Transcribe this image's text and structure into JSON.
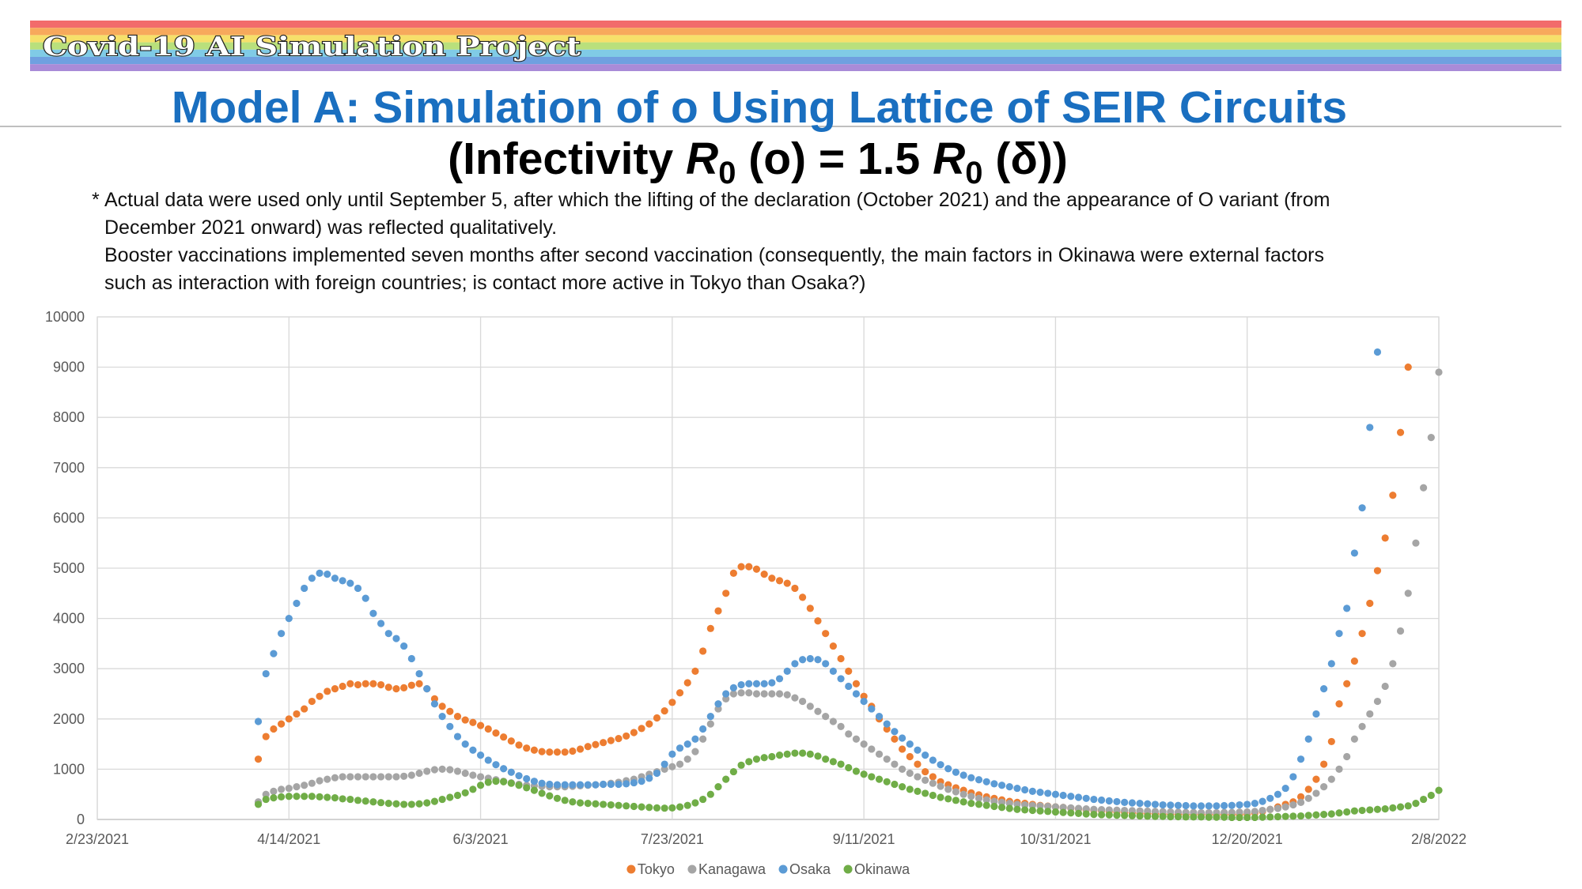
{
  "header": {
    "banner": "Covid-19 AI Simulation Project",
    "title": "Model A: Simulation of o Using Lattice of SEIR Circuits",
    "subtitle": [
      "(Infectivity ",
      "R",
      "0",
      " (o) = 1.5 ",
      "R",
      "0",
      " (δ))"
    ]
  },
  "notes": [
    {
      "marker": "*",
      "lines": [
        "Actual data were used only until September 5, after which the lifting of the declaration (October 2021) and the appearance of O variant (from",
        "December 2021 onward) was reflected qualitatively."
      ]
    },
    {
      "lines": [
        "Booster vaccinations implemented seven months after second vaccination (consequently, the main factors in Okinawa were external factors",
        "such as interaction with foreign countries; is contact more active in Tokyo than Osaka?)"
      ]
    }
  ],
  "chart_data": {
    "type": "scatter",
    "x": [
      "4/6/2021",
      "4/8/2021",
      "4/10/2021",
      "4/12/2021",
      "4/14/2021",
      "4/16/2021",
      "4/18/2021",
      "4/20/2021",
      "4/22/2021",
      "4/24/2021",
      "4/26/2021",
      "4/28/2021",
      "4/30/2021",
      "5/2/2021",
      "5/4/2021",
      "5/6/2021",
      "5/8/2021",
      "5/10/2021",
      "5/12/2021",
      "5/14/2021",
      "5/16/2021",
      "5/18/2021",
      "5/20/2021",
      "5/22/2021",
      "5/24/2021",
      "5/26/2021",
      "5/28/2021",
      "5/30/2021",
      "6/1/2021",
      "6/3/2021",
      "6/5/2021",
      "6/7/2021",
      "6/9/2021",
      "6/11/2021",
      "6/13/2021",
      "6/15/2021",
      "6/17/2021",
      "6/19/2021",
      "6/21/2021",
      "6/23/2021",
      "6/25/2021",
      "6/27/2021",
      "6/29/2021",
      "7/1/2021",
      "7/3/2021",
      "7/5/2021",
      "7/7/2021",
      "7/9/2021",
      "7/11/2021",
      "7/13/2021",
      "7/15/2021",
      "7/17/2021",
      "7/19/2021",
      "7/21/2021",
      "7/23/2021",
      "7/25/2021",
      "7/27/2021",
      "7/29/2021",
      "7/31/2021",
      "8/2/2021",
      "8/4/2021",
      "8/6/2021",
      "8/8/2021",
      "8/10/2021",
      "8/12/2021",
      "8/14/2021",
      "8/16/2021",
      "8/18/2021",
      "8/20/2021",
      "8/22/2021",
      "8/24/2021",
      "8/26/2021",
      "8/28/2021",
      "8/30/2021",
      "9/1/2021",
      "9/3/2021",
      "9/5/2021",
      "9/7/2021",
      "9/9/2021",
      "9/11/2021",
      "9/13/2021",
      "9/15/2021",
      "9/17/2021",
      "9/19/2021",
      "9/21/2021",
      "9/23/2021",
      "9/25/2021",
      "9/27/2021",
      "9/29/2021",
      "10/1/2021",
      "10/3/2021",
      "10/5/2021",
      "10/7/2021",
      "10/9/2021",
      "10/11/2021",
      "10/13/2021",
      "10/15/2021",
      "10/17/2021",
      "10/19/2021",
      "10/21/2021",
      "10/23/2021",
      "10/25/2021",
      "10/27/2021",
      "10/29/2021",
      "10/31/2021",
      "11/2/2021",
      "11/4/2021",
      "11/6/2021",
      "11/8/2021",
      "11/10/2021",
      "11/12/2021",
      "11/14/2021",
      "11/16/2021",
      "11/18/2021",
      "11/20/2021",
      "11/22/2021",
      "11/24/2021",
      "11/26/2021",
      "11/28/2021",
      "11/30/2021",
      "12/2/2021",
      "12/4/2021",
      "12/6/2021",
      "12/8/2021",
      "12/10/2021",
      "12/12/2021",
      "12/14/2021",
      "12/16/2021",
      "12/18/2021",
      "12/20/2021",
      "12/22/2021",
      "12/24/2021",
      "12/26/2021",
      "12/28/2021",
      "12/30/2021",
      "1/1/2022",
      "1/3/2022",
      "1/5/2022",
      "1/7/2022",
      "1/9/2022",
      "1/11/2022",
      "1/13/2022",
      "1/15/2022",
      "1/17/2022",
      "1/19/2022",
      "1/21/2022",
      "1/23/2022",
      "1/25/2022",
      "1/27/2022",
      "1/29/2022",
      "1/31/2022",
      "2/2/2022",
      "2/4/2022",
      "2/6/2022",
      "2/8/2022"
    ],
    "series": [
      {
        "name": "Tokyo",
        "color": "#ed7d31",
        "values": [
          1200,
          1650,
          1800,
          1900,
          2000,
          2100,
          2200,
          2350,
          2450,
          2550,
          2600,
          2650,
          2700,
          2680,
          2700,
          2700,
          2680,
          2630,
          2600,
          2620,
          2670,
          2700,
          2600,
          2400,
          2250,
          2150,
          2050,
          1980,
          1930,
          1870,
          1800,
          1720,
          1640,
          1560,
          1480,
          1420,
          1380,
          1350,
          1340,
          1340,
          1340,
          1360,
          1400,
          1450,
          1490,
          1530,
          1570,
          1610,
          1660,
          1730,
          1810,
          1900,
          2020,
          2160,
          2330,
          2520,
          2720,
          2950,
          3350,
          3800,
          4150,
          4500,
          4900,
          5030,
          5030,
          4980,
          4880,
          4800,
          4750,
          4700,
          4600,
          4420,
          4200,
          3950,
          3700,
          3450,
          3200,
          2950,
          2700,
          2450,
          2250,
          2000,
          1800,
          1600,
          1400,
          1250,
          1100,
          950,
          850,
          750,
          690,
          630,
          580,
          530,
          490,
          450,
          420,
          390,
          360,
          340,
          320,
          300,
          280,
          265,
          250,
          240,
          225,
          210,
          195,
          185,
          175,
          165,
          155,
          145,
          135,
          125,
          120,
          115,
          110,
          105,
          100,
          100,
          100,
          100,
          100,
          100,
          100,
          100,
          100,
          110,
          130,
          160,
          200,
          250,
          300,
          350,
          450,
          600,
          800,
          1100,
          1550,
          2300,
          2700,
          3150,
          3700,
          4300,
          4950,
          5600,
          6450,
          7700,
          9000,
          null,
          null,
          null,
          null
        ]
      },
      {
        "name": "Kanagawa",
        "color": "#a5a5a5",
        "values": [
          350,
          500,
          560,
          600,
          620,
          650,
          680,
          720,
          770,
          800,
          830,
          850,
          850,
          850,
          850,
          850,
          850,
          850,
          850,
          860,
          880,
          920,
          960,
          990,
          1000,
          990,
          960,
          920,
          880,
          850,
          820,
          790,
          760,
          730,
          700,
          680,
          670,
          660,
          650,
          650,
          650,
          660,
          670,
          680,
          690,
          700,
          720,
          740,
          770,
          800,
          850,
          900,
          950,
          1000,
          1050,
          1100,
          1200,
          1350,
          1600,
          1900,
          2200,
          2400,
          2500,
          2520,
          2520,
          2500,
          2500,
          2500,
          2500,
          2480,
          2420,
          2350,
          2250,
          2150,
          2050,
          1950,
          1850,
          1700,
          1600,
          1500,
          1400,
          1300,
          1200,
          1100,
          1000,
          920,
          850,
          780,
          720,
          660,
          600,
          550,
          500,
          460,
          420,
          390,
          360,
          340,
          320,
          300,
          290,
          280,
          270,
          260,
          250,
          240,
          230,
          220,
          210,
          200,
          195,
          190,
          185,
          180,
          175,
          170,
          165,
          160,
          155,
          150,
          145,
          140,
          140,
          135,
          135,
          135,
          140,
          140,
          145,
          150,
          160,
          180,
          200,
          220,
          250,
          290,
          340,
          420,
          520,
          650,
          800,
          1000,
          1250,
          1600,
          1850,
          2100,
          2350,
          2650,
          3100,
          3750,
          4500,
          5500,
          6600,
          7600,
          8900
        ]
      },
      {
        "name": "Osaka",
        "color": "#5b9bd5",
        "values": [
          1950,
          2900,
          3300,
          3700,
          4000,
          4300,
          4600,
          4800,
          4900,
          4880,
          4800,
          4750,
          4700,
          4600,
          4400,
          4100,
          3900,
          3700,
          3600,
          3450,
          3200,
          2900,
          2600,
          2300,
          2050,
          1850,
          1650,
          1500,
          1380,
          1280,
          1180,
          1090,
          1010,
          940,
          870,
          810,
          760,
          720,
          700,
          690,
          690,
          690,
          690,
          690,
          690,
          700,
          700,
          700,
          710,
          730,
          760,
          820,
          920,
          1100,
          1300,
          1420,
          1500,
          1600,
          1800,
          2050,
          2300,
          2500,
          2620,
          2680,
          2700,
          2700,
          2700,
          2720,
          2800,
          2950,
          3100,
          3180,
          3200,
          3180,
          3100,
          2950,
          2800,
          2650,
          2500,
          2350,
          2200,
          2050,
          1900,
          1750,
          1620,
          1500,
          1380,
          1280,
          1180,
          1090,
          1010,
          940,
          880,
          830,
          790,
          750,
          710,
          680,
          650,
          620,
          590,
          560,
          540,
          520,
          500,
          480,
          460,
          440,
          420,
          400,
          385,
          370,
          355,
          340,
          330,
          320,
          310,
          300,
          290,
          285,
          280,
          275,
          270,
          270,
          270,
          270,
          275,
          280,
          290,
          300,
          320,
          360,
          420,
          500,
          620,
          850,
          1200,
          1600,
          2100,
          2600,
          3100,
          3700,
          4200,
          5300,
          6200,
          7800,
          9300,
          null,
          null,
          null,
          null,
          null,
          null,
          null,
          null
        ]
      },
      {
        "name": "Okinawa",
        "color": "#70ad47",
        "values": [
          300,
          400,
          430,
          450,
          460,
          460,
          460,
          460,
          450,
          440,
          430,
          410,
          400,
          380,
          365,
          350,
          335,
          320,
          310,
          300,
          300,
          310,
          330,
          360,
          400,
          440,
          480,
          530,
          600,
          680,
          740,
          760,
          750,
          720,
          680,
          630,
          580,
          520,
          470,
          420,
          380,
          350,
          330,
          320,
          310,
          300,
          290,
          280,
          270,
          260,
          250,
          240,
          230,
          225,
          230,
          250,
          280,
          330,
          400,
          500,
          650,
          800,
          950,
          1080,
          1150,
          1200,
          1230,
          1250,
          1280,
          1300,
          1320,
          1320,
          1300,
          1260,
          1200,
          1150,
          1100,
          1030,
          960,
          900,
          850,
          800,
          750,
          700,
          650,
          600,
          560,
          520,
          480,
          440,
          410,
          380,
          350,
          320,
          300,
          280,
          260,
          240,
          220,
          200,
          190,
          180,
          170,
          160,
          150,
          140,
          130,
          120,
          110,
          100,
          95,
          90,
          85,
          80,
          75,
          70,
          65,
          60,
          60,
          55,
          55,
          50,
          50,
          50,
          45,
          45,
          45,
          40,
          40,
          40,
          40,
          45,
          50,
          55,
          60,
          65,
          70,
          80,
          90,
          100,
          110,
          130,
          150,
          170,
          180,
          190,
          200,
          210,
          230,
          250,
          270,
          320,
          400,
          480,
          580
        ]
      }
    ],
    "xlim": [
      "2/23/2021",
      "2/8/2022"
    ],
    "xticks": [
      "2/23/2021",
      "4/14/2021",
      "6/3/2021",
      "7/23/2021",
      "9/11/2021",
      "10/31/2021",
      "12/20/2021",
      "2/8/2022"
    ],
    "ylim": [
      0,
      10000
    ],
    "yticks": [
      0,
      1000,
      2000,
      3000,
      4000,
      5000,
      6000,
      7000,
      8000,
      9000,
      10000
    ],
    "grid": true,
    "legend": "bottom"
  }
}
